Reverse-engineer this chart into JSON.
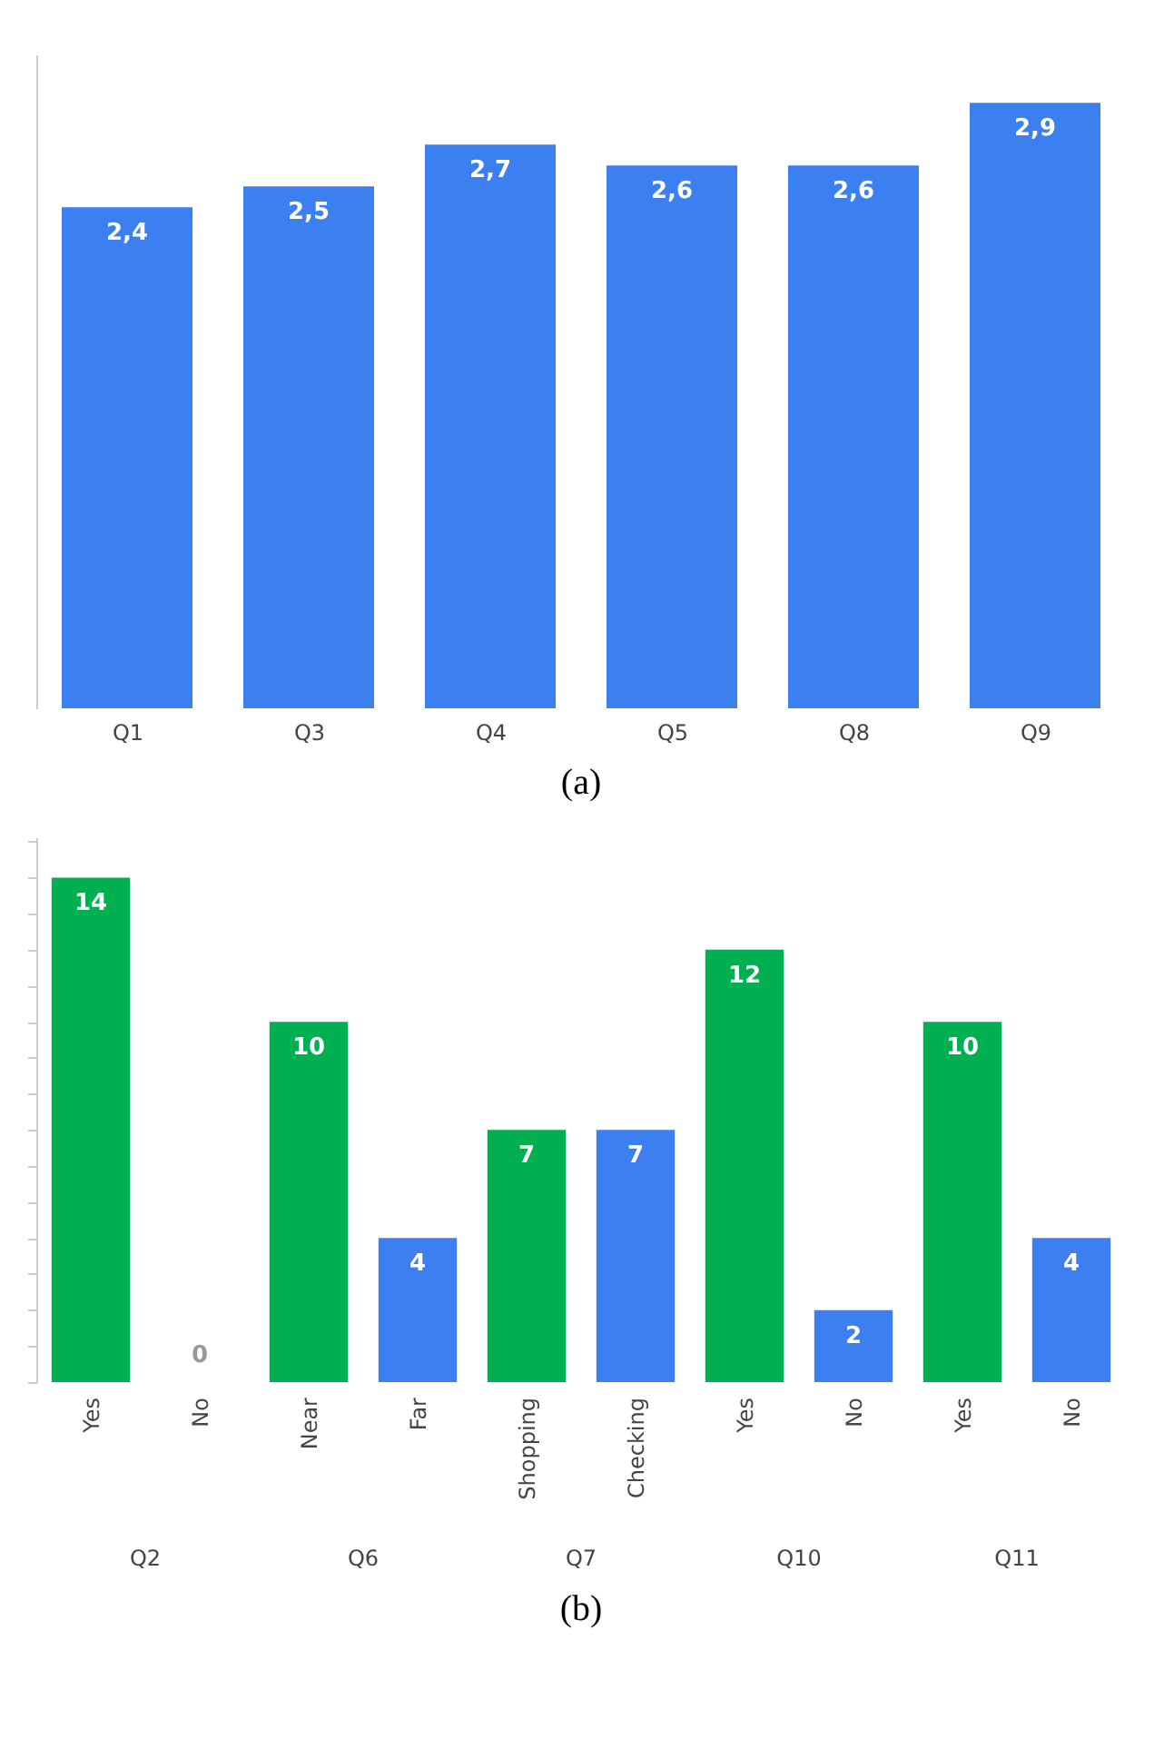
{
  "chart_data": [
    {
      "type": "bar",
      "title": "(a)",
      "categories": [
        "Q1",
        "Q3",
        "Q4",
        "Q5",
        "Q8",
        "Q9"
      ],
      "values": [
        2.4,
        2.5,
        2.7,
        2.6,
        2.6,
        2.9
      ],
      "value_labels": [
        "2,4",
        "2,5",
        "2,7",
        "2,6",
        "2,6",
        "2,9"
      ],
      "color": "#3b7ff0",
      "tick_labels": "x",
      "grid": false
    },
    {
      "type": "bar",
      "title": "(b)",
      "categories": [
        "Yes",
        "No",
        "Near",
        "Far",
        "Shopping",
        "Checking",
        "Yes",
        "No",
        "Yes",
        "No"
      ],
      "values": [
        14,
        0,
        10,
        4,
        7,
        7,
        12,
        2,
        10,
        4
      ],
      "colors": [
        "#00b050",
        "#3b7ff0",
        "#00b050",
        "#3b7ff0",
        "#00b050",
        "#3b7ff0",
        "#00b050",
        "#3b7ff0",
        "#00b050",
        "#3b7ff0"
      ],
      "data_labels": true,
      "annotations": [
        "Q2",
        "Q6",
        "Q7",
        "Q10",
        "Q11"
      ],
      "tick_labels": "x",
      "grid": false
    }
  ]
}
